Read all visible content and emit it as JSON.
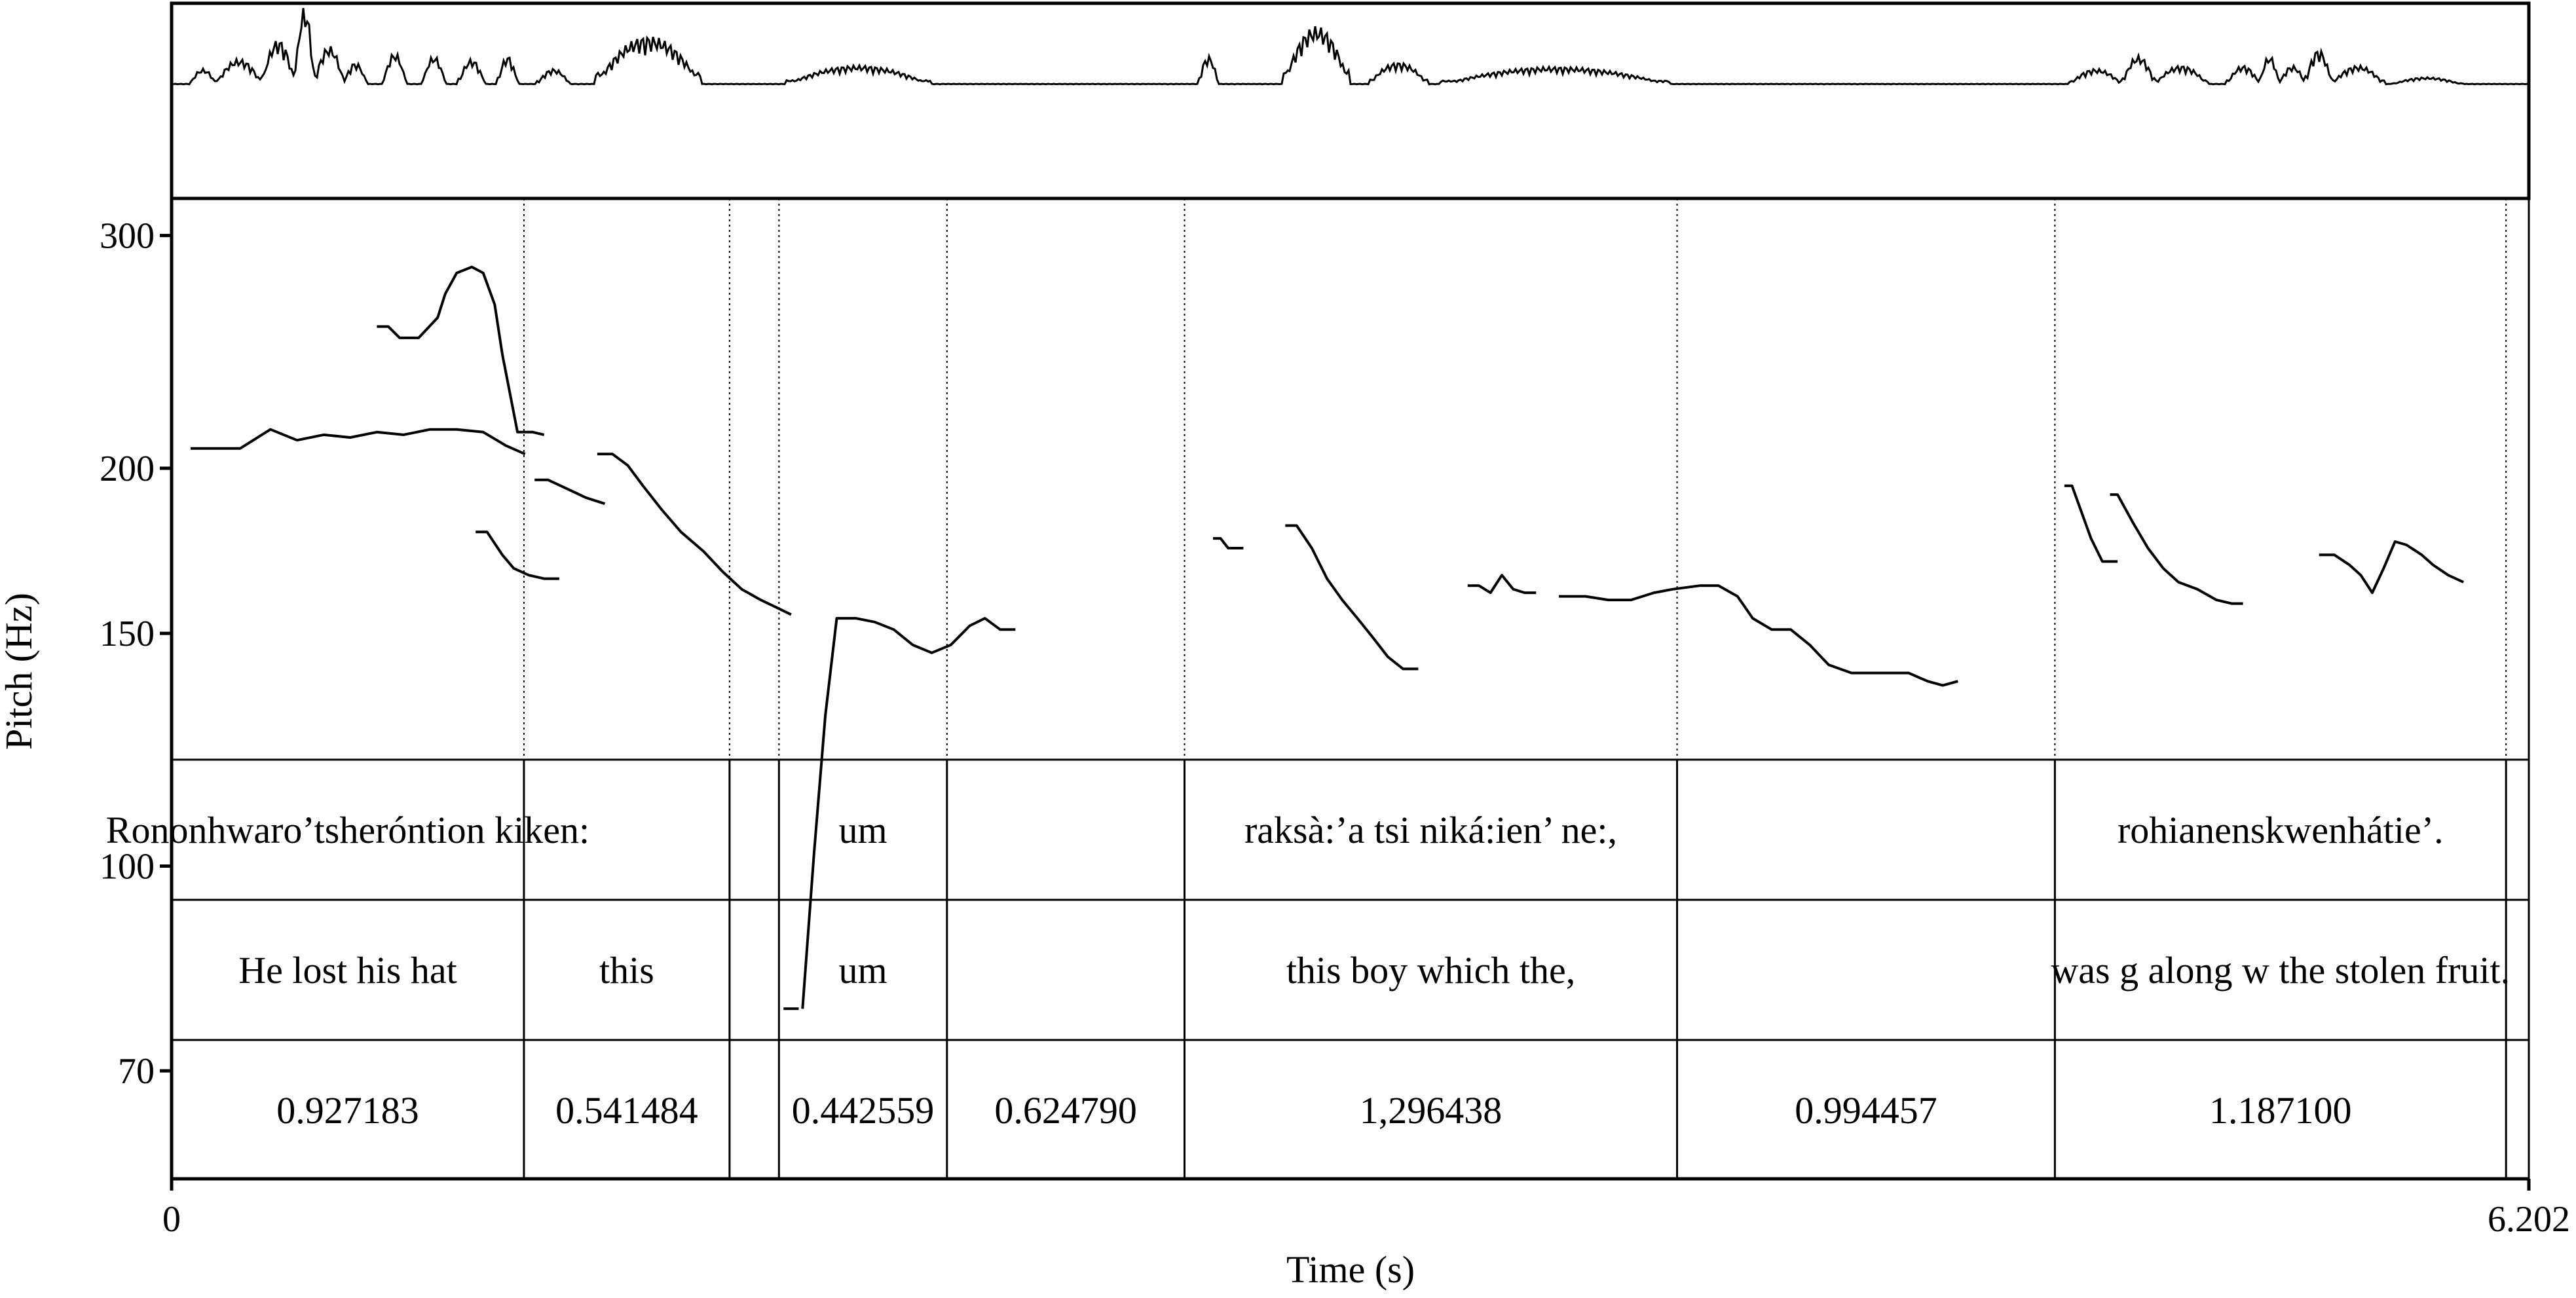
{
  "chart_data": {
    "type": "line",
    "xlabel": "Time (s)",
    "ylabel": "Pitch (Hz)",
    "xlim": [
      0,
      6.202
    ],
    "x_tick_labels": [
      "0",
      "6.202"
    ],
    "ylim": [
      58,
      320
    ],
    "y_scale": "log",
    "y_ticks": [
      300,
      200,
      150,
      100,
      70
    ],
    "y_tick_labels": [
      "300",
      "200",
      "150",
      "100",
      "70"
    ],
    "boundaries": [
      0.927,
      1.468,
      1.598,
      2.04,
      2.665,
      3.961,
      4.955,
      6.142
    ],
    "pitch_segments": [
      {
        "t": [
          0.05,
          0.12,
          0.18,
          0.26,
          0.33,
          0.4,
          0.47,
          0.54,
          0.61,
          0.68,
          0.75,
          0.82,
          0.88,
          0.93
        ],
        "f": [
          207,
          207,
          207,
          214,
          210,
          212,
          211,
          213,
          212,
          214,
          214,
          213,
          208,
          205
        ]
      },
      {
        "t": [
          0.54,
          0.57,
          0.6,
          0.65,
          0.7,
          0.72,
          0.75,
          0.79,
          0.82,
          0.85,
          0.87,
          0.91,
          0.95,
          0.98
        ],
        "f": [
          256,
          256,
          251,
          251,
          260,
          271,
          281,
          284,
          281,
          266,
          244,
          213,
          213,
          212
        ]
      },
      {
        "t": [
          0.8,
          0.83,
          0.87,
          0.9,
          0.94,
          0.98,
          1.02
        ],
        "f": [
          179,
          179,
          172,
          168,
          166,
          165,
          165
        ]
      },
      {
        "t": [
          0.955,
          0.99,
          1.04,
          1.09,
          1.14
        ],
        "f": [
          196,
          196,
          193,
          190,
          188
        ]
      },
      {
        "t": [
          1.12,
          1.16,
          1.2,
          1.24,
          1.29,
          1.34,
          1.4,
          1.45,
          1.5,
          1.55,
          1.59,
          1.63
        ],
        "f": [
          205,
          205,
          201,
          194,
          186,
          179,
          173,
          167,
          162,
          159,
          157,
          155
        ]
      },
      {
        "t": [
          1.61,
          1.65
        ],
        "f": [
          78,
          78
        ]
      },
      {
        "t": [
          1.66,
          1.69,
          1.72,
          1.75,
          1.8,
          1.85,
          1.9,
          1.95,
          2.0,
          2.05,
          2.1,
          2.14,
          2.18,
          2.22
        ],
        "f": [
          78,
          102,
          130,
          154,
          154,
          153,
          151,
          147,
          145,
          147,
          152,
          154,
          151,
          151
        ]
      },
      {
        "t": [
          2.74,
          2.76,
          2.78,
          2.82
        ],
        "f": [
          177,
          177,
          174,
          174
        ]
      },
      {
        "t": [
          2.93,
          2.96,
          3.0,
          3.04,
          3.08,
          3.12,
          3.16,
          3.2,
          3.24,
          3.28
        ],
        "f": [
          181,
          181,
          174,
          165,
          159,
          154,
          149,
          144,
          141,
          141
        ]
      },
      {
        "t": [
          3.41,
          3.44,
          3.47,
          3.5,
          3.53,
          3.56,
          3.59
        ],
        "f": [
          163,
          163,
          161,
          166,
          162,
          161,
          161
        ]
      },
      {
        "t": [
          3.65,
          3.72,
          3.78,
          3.84,
          3.9,
          3.95,
          4.02,
          4.07,
          4.12,
          4.16,
          4.21,
          4.26,
          4.31,
          4.36,
          4.42,
          4.47,
          4.52,
          4.57,
          4.62,
          4.66,
          4.7
        ],
        "f": [
          160,
          160,
          159,
          159,
          161,
          162,
          163,
          163,
          160,
          154,
          151,
          151,
          147,
          142,
          140,
          140,
          140,
          140,
          138,
          137,
          138
        ]
      },
      {
        "t": [
          4.98,
          5.0,
          5.02,
          5.05,
          5.08,
          5.12
        ],
        "f": [
          194,
          194,
          187,
          177,
          170,
          170
        ]
      },
      {
        "t": [
          5.1,
          5.12,
          5.16,
          5.2,
          5.24,
          5.28,
          5.33,
          5.38,
          5.42,
          5.45
        ],
        "f": [
          191,
          191,
          182,
          174,
          168,
          164,
          162,
          159,
          158,
          158
        ]
      },
      {
        "t": [
          5.65,
          5.69,
          5.73,
          5.76,
          5.79,
          5.82,
          5.85,
          5.88,
          5.92,
          5.95,
          5.99,
          6.03
        ],
        "f": [
          172,
          172,
          169,
          166,
          161,
          168,
          176,
          175,
          172,
          169,
          166,
          164
        ]
      }
    ],
    "tiers": [
      {
        "name": "text",
        "cells": [
          "Rononhwaro’tsheróntion kiken:",
          "",
          "",
          "um",
          "",
          "raksà:’a tsi niká:ien’ ne:,",
          "",
          "rohianenskwenhátie’.",
          ""
        ]
      },
      {
        "name": "translation",
        "cells": [
          "He lost his hat",
          "this",
          "",
          "um",
          "",
          "this boy which the,",
          "",
          "was g along w the stolen fruit.",
          ""
        ]
      },
      {
        "name": "duration",
        "cells": [
          "0.927183",
          "0.541484",
          "",
          "0.442559",
          "0.624790",
          "1,296438",
          "0.994457",
          "1.187100",
          ""
        ]
      }
    ]
  }
}
